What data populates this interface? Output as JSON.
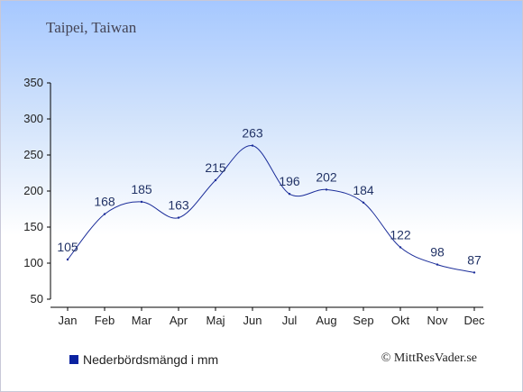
{
  "location": "Taipei, Taiwan",
  "copyright": "© MittResVader.se",
  "colors": {
    "line": "#1a2c99",
    "legend_swatch": "#0a22a0",
    "axis": "#000000"
  },
  "chart_data": {
    "type": "line",
    "categories": [
      "Jan",
      "Feb",
      "Mar",
      "Apr",
      "Maj",
      "Jun",
      "Jul",
      "Aug",
      "Sep",
      "Okt",
      "Nov",
      "Dec"
    ],
    "series": [
      {
        "name": "Nederbördsmängd i mm",
        "values": [
          105,
          168,
          185,
          163,
          215,
          263,
          196,
          202,
          184,
          122,
          98,
          87
        ]
      }
    ],
    "ylim": [
      50,
      350
    ],
    "yticks": [
      50,
      100,
      150,
      200,
      250,
      300,
      350
    ],
    "grid": false,
    "legend": "bottom-left"
  }
}
